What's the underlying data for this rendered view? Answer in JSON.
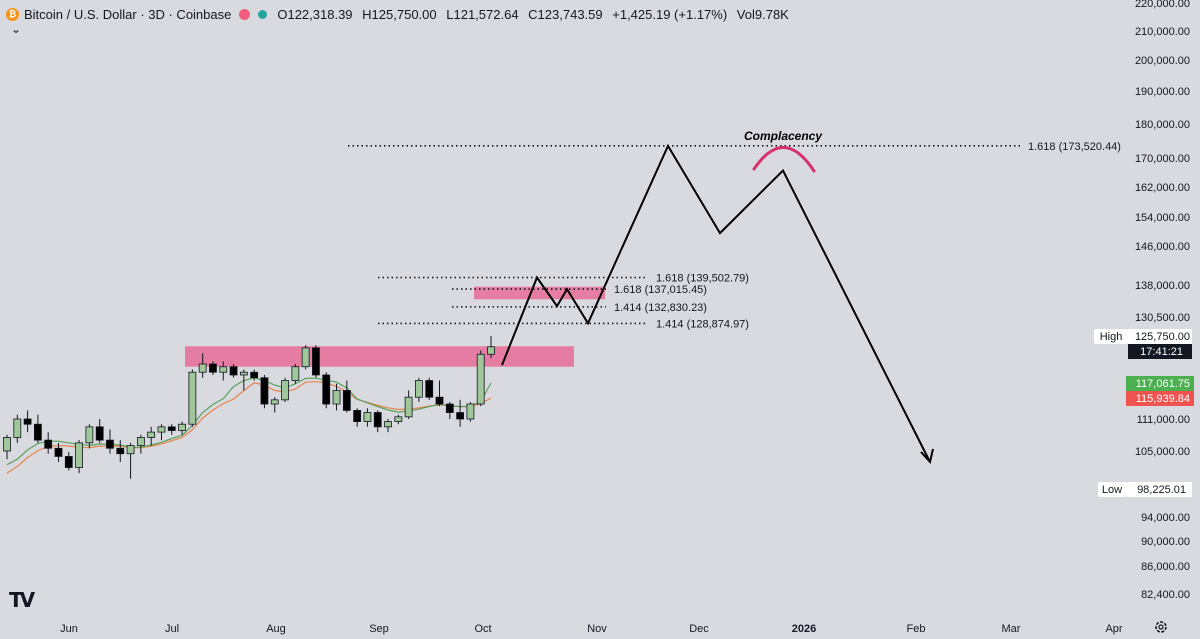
{
  "header": {
    "symbol_icon": "bitcoin-icon",
    "title": "Bitcoin / U.S. Dollar · 3D · Coinbase",
    "open": "O122,318.39",
    "high": "H125,750.00",
    "low": "L121,572.64",
    "close": "C123,743.59",
    "change": "+1,425.19 (+1.17%)",
    "volume": "Vol9.78K",
    "collapse_icon": "chevron-down-icon",
    "flag_color": "#f05d7d",
    "live_color": "#26a69a"
  },
  "branding": {
    "logo": "TV"
  },
  "settings_icon": "gear-icon",
  "chart_data": {
    "type": "candlestick",
    "title": "Bitcoin / U.S. Dollar · 3D · Coinbase",
    "y_ticks": [
      "220,000.00",
      "210,000.00",
      "200,000.00",
      "190,000.00",
      "180,000.00",
      "170,000.00",
      "162,000.00",
      "154,000.00",
      "146,000.00",
      "138,000.00",
      "130,500.00",
      "125,750.00",
      "117,061.75",
      "115,939.84",
      "111,000.00",
      "105,000.00",
      "98,225.01",
      "94,000.00",
      "90,000.00",
      "86,000.00",
      "82,400.00"
    ],
    "x_ticks": [
      "Jun",
      "Jul",
      "Aug",
      "Sep",
      "Oct",
      "Nov",
      "Dec",
      "2026",
      "Feb",
      "Mar",
      "Apr"
    ],
    "price_labels": {
      "high_label": "High",
      "high_value": "125,750.00",
      "countdown": "17:41:21",
      "ma_fast": "117,061.75",
      "ma_slow": "115,939.84",
      "low_label": "Low",
      "low_value": "98,225.01"
    },
    "fib_levels": [
      {
        "label": "1.618 (173,520.44)",
        "price": 173520.44
      },
      {
        "label": "1.618 (139,502.79)",
        "price": 139502.79
      },
      {
        "label": "1.618 (137,015.45)",
        "price": 137015.45
      },
      {
        "label": "1.414 (132,830.23)",
        "price": 132830.23
      },
      {
        "label": "1.414 (128,874.97)",
        "price": 128874.97
      }
    ],
    "annotations": [
      {
        "text": "Complacency"
      }
    ],
    "zones": [
      {
        "from": 120000,
        "to": 123800
      },
      {
        "from": 134600,
        "to": 137600
      }
    ],
    "candles": [
      [
        105000,
        108000,
        103500,
        107500
      ],
      [
        107500,
        112000,
        106500,
        111000
      ],
      [
        111000,
        113000,
        108500,
        110000
      ],
      [
        110000,
        112000,
        106500,
        107000
      ],
      [
        107000,
        108500,
        104500,
        105500
      ],
      [
        105500,
        106500,
        103000,
        104000
      ],
      [
        104000,
        104800,
        101500,
        102000
      ],
      [
        102000,
        107000,
        101000,
        106500
      ],
      [
        106500,
        110000,
        105500,
        109500
      ],
      [
        109500,
        111000,
        106500,
        107000
      ],
      [
        107000,
        109000,
        104500,
        105500
      ],
      [
        105500,
        107000,
        103000,
        104500
      ],
      [
        104500,
        106500,
        100000,
        106000
      ],
      [
        106000,
        108000,
        104500,
        107500
      ],
      [
        107500,
        109500,
        106000,
        108500
      ],
      [
        108500,
        110000,
        107000,
        109500
      ],
      [
        109500,
        110000,
        108000,
        108800
      ],
      [
        108800,
        110500,
        108000,
        110000
      ],
      [
        110000,
        119500,
        109500,
        119000
      ],
      [
        119000,
        122500,
        118000,
        120500
      ],
      [
        120500,
        121000,
        118500,
        119000
      ],
      [
        119000,
        121000,
        117500,
        120000
      ],
      [
        120000,
        120500,
        118000,
        118500
      ],
      [
        118500,
        119500,
        116500,
        119000
      ],
      [
        119000,
        119500,
        117500,
        118000
      ],
      [
        118000,
        118500,
        113500,
        114500
      ],
      [
        114500,
        116000,
        112500,
        115500
      ],
      [
        115500,
        118000,
        115000,
        117500
      ],
      [
        117500,
        120500,
        117000,
        120000
      ],
      [
        120000,
        124000,
        119500,
        123500
      ],
      [
        123500,
        124000,
        118000,
        118500
      ],
      [
        118500,
        119000,
        113500,
        114500
      ],
      [
        114500,
        117000,
        113000,
        116500
      ],
      [
        116500,
        117500,
        112500,
        113000
      ],
      [
        113000,
        113500,
        109500,
        110500
      ],
      [
        110500,
        113500,
        109500,
        112500
      ],
      [
        112500,
        113000,
        108500,
        109500
      ],
      [
        109500,
        111000,
        108500,
        110500
      ],
      [
        110500,
        112000,
        110000,
        111500
      ],
      [
        111500,
        116500,
        111000,
        116000
      ],
      [
        116000,
        118000,
        115000,
        117500
      ],
      [
        117500,
        118000,
        115500,
        116000
      ],
      [
        116000,
        117500,
        114000,
        114500
      ],
      [
        114500,
        115000,
        111000,
        112500
      ],
      [
        112500,
        115500,
        109500,
        111000
      ],
      [
        111000,
        115000,
        110500,
        114500
      ],
      [
        114500,
        123000,
        114000,
        122300
      ],
      [
        122300,
        125750,
        121600,
        123700
      ]
    ],
    "ma_fast_series": [
      102500,
      103500,
      105200,
      106400,
      106800,
      106800,
      106500,
      106200,
      106000,
      106300,
      106200,
      106100,
      105700,
      105700,
      106100,
      106600,
      107300,
      107900,
      109800,
      112500,
      114400,
      115800,
      116800,
      117500,
      118000,
      117500,
      116900,
      116700,
      117000,
      117900,
      117900,
      117600,
      117200,
      116700,
      115700,
      114800,
      113900,
      113100,
      112600,
      112800,
      113300,
      113900,
      114400,
      114100,
      113900,
      114000,
      115100,
      117060
    ],
    "ma_slow_series": [
      101000,
      102200,
      103800,
      105100,
      105800,
      106000,
      105900,
      105700,
      105600,
      105900,
      105900,
      105900,
      105600,
      105600,
      105900,
      106300,
      106900,
      107500,
      109000,
      111200,
      113100,
      114600,
      115700,
      116500,
      117100,
      116900,
      116500,
      116400,
      116600,
      117200,
      117300,
      117100,
      116800,
      116400,
      115600,
      114900,
      114200,
      113600,
      113200,
      113300,
      113600,
      114000,
      114300,
      114100,
      113900,
      113900,
      114600,
      115940
    ],
    "projection_path": [
      {
        "date": "Oct",
        "price": 120300,
        "note": "start"
      },
      {
        "date": "Oct",
        "price": 139500
      },
      {
        "date": "Oct",
        "price": 133000
      },
      {
        "date": "Oct",
        "price": 137000
      },
      {
        "date": "Oct",
        "price": 128900
      },
      {
        "date": "Nov",
        "price": 173500
      },
      {
        "date": "Dec",
        "price": 149500
      },
      {
        "date": "Dec",
        "price": 166500
      },
      {
        "date": "Feb",
        "price": 103000
      }
    ]
  }
}
